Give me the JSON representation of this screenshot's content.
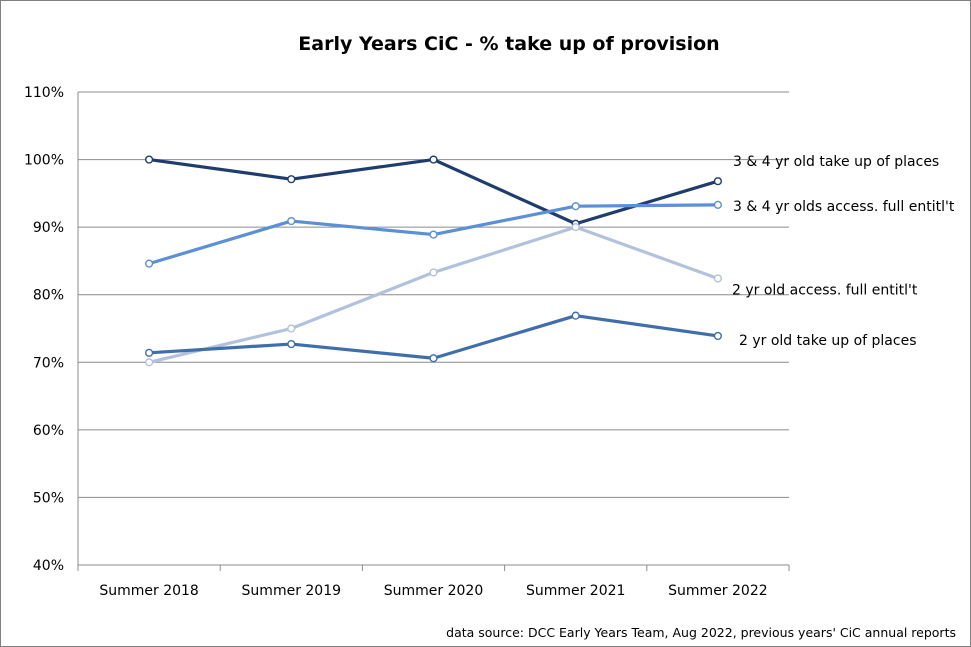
{
  "chart_data": {
    "type": "line",
    "title": "Early Years CiC - % take up of provision",
    "categories": [
      "Summer 2018",
      "Summer 2019",
      "Summer 2020",
      "Summer 2021",
      "Summer 2022"
    ],
    "xlabel": "",
    "ylabel": "",
    "ylim": [
      40,
      110
    ],
    "yticks": [
      40,
      50,
      60,
      70,
      80,
      90,
      100,
      110
    ],
    "ytick_format": "%",
    "grid": true,
    "series": [
      {
        "name": "3 & 4 yr old take up of places",
        "color": "#1f3c6e",
        "values": [
          100,
          97.1,
          100,
          90.5,
          96.8
        ]
      },
      {
        "name": "3 & 4 yr olds access. full entitl't",
        "color": "#5b8fd6",
        "values": [
          84.6,
          90.9,
          88.9,
          93.1,
          93.3
        ]
      },
      {
        "name": "2 yr old access. full entitl't",
        "color": "#b2c2dd",
        "values": [
          70,
          75,
          83.3,
          90,
          82.4
        ]
      },
      {
        "name": "2 yr old take up of places",
        "color": "#3f6eab",
        "values": [
          71.4,
          72.7,
          70.6,
          76.9,
          73.9
        ]
      }
    ],
    "source_note": "data source: DCC Early Years Team, Aug 2022, previous years' CiC annual reports"
  }
}
